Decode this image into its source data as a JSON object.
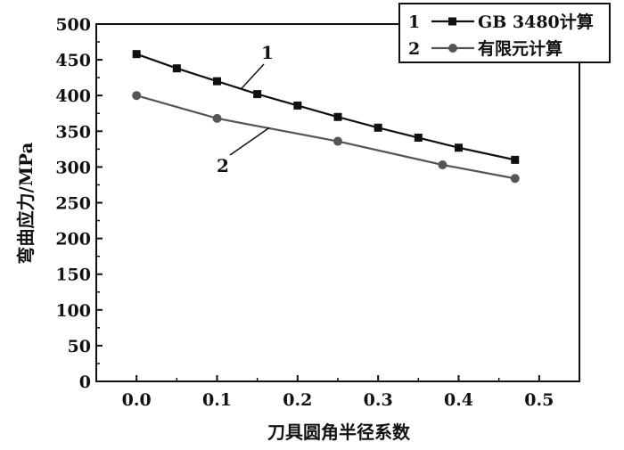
{
  "chart_data": {
    "type": "line",
    "xlabel": "刀具圆角半径系数",
    "ylabel": "弯曲应力/MPa",
    "xlim": [
      -0.05,
      0.55
    ],
    "ylim": [
      0,
      500
    ],
    "xticks": [
      "0.0",
      "0.1",
      "0.2",
      "0.3",
      "0.4",
      "0.5"
    ],
    "yticks": [
      "0",
      "50",
      "100",
      "150",
      "200",
      "250",
      "300",
      "350",
      "400",
      "450",
      "500"
    ],
    "grid": false,
    "legend_position": "top-right",
    "series": [
      {
        "name": "GB 3480计算",
        "index": "1",
        "marker": "square",
        "color": "#111111",
        "x": [
          0.0,
          0.05,
          0.1,
          0.15,
          0.2,
          0.25,
          0.3,
          0.35,
          0.4,
          0.47
        ],
        "y": [
          458,
          438,
          420,
          402,
          386,
          370,
          355,
          341,
          327,
          310
        ]
      },
      {
        "name": "有限元计算",
        "index": "2",
        "marker": "circle",
        "color": "#555555",
        "x": [
          0.0,
          0.1,
          0.25,
          0.38,
          0.47
        ],
        "y": [
          400,
          368,
          336,
          303,
          284
        ]
      }
    ],
    "annotations": [
      {
        "text": "1",
        "series": 0
      },
      {
        "text": "2",
        "series": 1
      }
    ]
  }
}
